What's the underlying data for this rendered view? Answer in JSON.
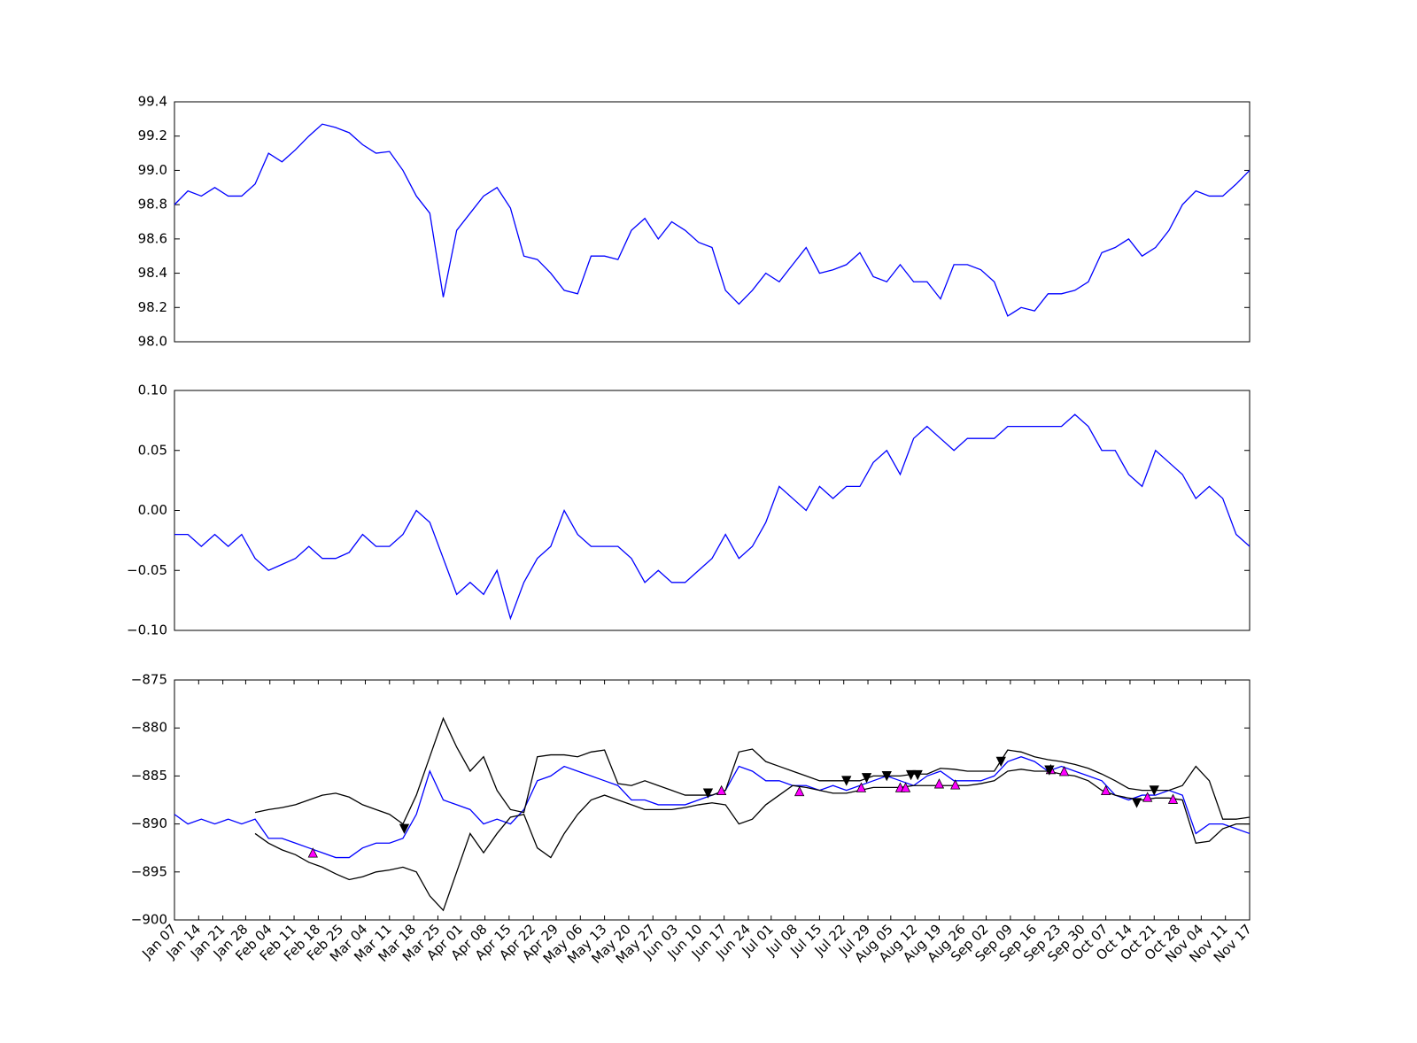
{
  "chart_data": [
    {
      "type": "line",
      "xlim": [
        0,
        80
      ],
      "ylim": [
        98.0,
        99.4
      ],
      "yticks": [
        {
          "value": 98,
          "label": "98.0"
        },
        98.2,
        98.4,
        98.6,
        98.8,
        {
          "value": 99,
          "label": "99.0"
        },
        99.2,
        99.4
      ],
      "series": [
        {
          "color": "#0000ff",
          "values": [
            98.8,
            98.88,
            98.85,
            98.9,
            98.85,
            98.85,
            98.92,
            99.1,
            99.05,
            99.12,
            99.2,
            99.27,
            99.25,
            99.22,
            99.15,
            99.1,
            99.11,
            99.0,
            98.85,
            98.75,
            98.26,
            98.65,
            98.75,
            98.85,
            98.9,
            98.78,
            98.5,
            98.48,
            98.4,
            98.3,
            98.28,
            98.5,
            98.5,
            98.48,
            98.65,
            98.72,
            98.6,
            98.7,
            98.65,
            98.58,
            98.55,
            98.3,
            98.22,
            98.3,
            98.4,
            98.35,
            98.45,
            98.55,
            98.4,
            98.42,
            98.45,
            98.52,
            98.38,
            98.35,
            98.45,
            98.35,
            98.35,
            98.25,
            98.45,
            98.45,
            98.42,
            98.35,
            98.15,
            98.2,
            98.18,
            98.28,
            98.28,
            98.3,
            98.35,
            98.52,
            98.55,
            98.6,
            98.5,
            98.55,
            98.65,
            98.8,
            98.88,
            98.85,
            98.85,
            98.92,
            99.0
          ]
        }
      ]
    },
    {
      "type": "line",
      "xlim": [
        0,
        80
      ],
      "ylim": [
        -0.1,
        0.1
      ],
      "yticks": [
        {
          "value": -0.1,
          "label": "−0.10"
        },
        {
          "value": -0.05,
          "label": "−0.05"
        },
        {
          "value": 0,
          "label": "0.00"
        },
        0.05,
        {
          "value": 0.1,
          "label": "0.10"
        }
      ],
      "series": [
        {
          "color": "#0000ff",
          "values": [
            -0.02,
            -0.02,
            -0.03,
            -0.02,
            -0.03,
            -0.02,
            -0.04,
            -0.05,
            -0.045,
            -0.04,
            -0.03,
            -0.04,
            -0.04,
            -0.035,
            -0.02,
            -0.03,
            -0.03,
            -0.02,
            0.0,
            -0.01,
            -0.04,
            -0.07,
            -0.06,
            -0.07,
            -0.05,
            -0.09,
            -0.06,
            -0.04,
            -0.03,
            0.0,
            -0.02,
            -0.03,
            -0.03,
            -0.03,
            -0.04,
            -0.06,
            -0.05,
            -0.06,
            -0.06,
            -0.05,
            -0.04,
            -0.02,
            -0.04,
            -0.03,
            -0.01,
            0.02,
            0.01,
            0.0,
            0.02,
            0.01,
            0.02,
            0.02,
            0.04,
            0.05,
            0.03,
            0.06,
            0.07,
            0.06,
            0.05,
            0.06,
            0.06,
            0.06,
            0.07,
            0.07,
            0.07,
            0.07,
            0.07,
            0.08,
            0.07,
            0.05,
            0.05,
            0.03,
            0.02,
            0.05,
            0.04,
            0.03,
            0.01,
            0.02,
            0.01,
            -0.02,
            -0.03
          ]
        }
      ]
    },
    {
      "type": "line",
      "xlim": [
        0,
        80
      ],
      "ylim": [
        -900,
        -875
      ],
      "yticks": [
        {
          "value": -900,
          "label": "−900"
        },
        {
          "value": -895,
          "label": "−895"
        },
        {
          "value": -890,
          "label": "−890"
        },
        {
          "value": -885,
          "label": "−885"
        },
        {
          "value": -880,
          "label": "−880"
        },
        {
          "value": -875,
          "label": "−875"
        }
      ],
      "xticks": [
        {
          "value": 0,
          "label": "Jan 07"
        },
        {
          "value": 1.8,
          "label": "Jan 14"
        },
        {
          "value": 3.6,
          "label": "Jan 21"
        },
        {
          "value": 5.3,
          "label": "Jan 28"
        },
        {
          "value": 7.1,
          "label": "Feb 04"
        },
        {
          "value": 8.9,
          "label": "Feb 11"
        },
        {
          "value": 10.7,
          "label": "Feb 18"
        },
        {
          "value": 12.4,
          "label": "Feb 25"
        },
        {
          "value": 14.2,
          "label": "Mar 04"
        },
        {
          "value": 16,
          "label": "Mar 11"
        },
        {
          "value": 17.8,
          "label": "Mar 18"
        },
        {
          "value": 19.6,
          "label": "Mar 25"
        },
        {
          "value": 21.3,
          "label": "Apr 01"
        },
        {
          "value": 23.1,
          "label": "Apr 08"
        },
        {
          "value": 24.9,
          "label": "Apr 15"
        },
        {
          "value": 26.7,
          "label": "Apr 22"
        },
        {
          "value": 28.4,
          "label": "Apr 29"
        },
        {
          "value": 30.2,
          "label": "May 06"
        },
        {
          "value": 32,
          "label": "May 13"
        },
        {
          "value": 33.8,
          "label": "May 20"
        },
        {
          "value": 35.6,
          "label": "May 27"
        },
        {
          "value": 37.3,
          "label": "Jun 03"
        },
        {
          "value": 39.1,
          "label": "Jun 10"
        },
        {
          "value": 40.9,
          "label": "Jun 17"
        },
        {
          "value": 42.7,
          "label": "Jun 24"
        },
        {
          "value": 44.4,
          "label": "Jul 01"
        },
        {
          "value": 46.2,
          "label": "Jul 08"
        },
        {
          "value": 48,
          "label": "Jul 15"
        },
        {
          "value": 49.8,
          "label": "Jul 22"
        },
        {
          "value": 51.6,
          "label": "Jul 29"
        },
        {
          "value": 53.3,
          "label": "Aug 05"
        },
        {
          "value": 55.1,
          "label": "Aug 12"
        },
        {
          "value": 56.9,
          "label": "Aug 19"
        },
        {
          "value": 58.7,
          "label": "Aug 26"
        },
        {
          "value": 60.4,
          "label": "Sep 02"
        },
        {
          "value": 62.2,
          "label": "Sep 09"
        },
        {
          "value": 64,
          "label": "Sep 16"
        },
        {
          "value": 65.8,
          "label": "Sep 23"
        },
        {
          "value": 67.6,
          "label": "Sep 30"
        },
        {
          "value": 69.3,
          "label": "Oct 07"
        },
        {
          "value": 71.1,
          "label": "Oct 14"
        },
        {
          "value": 72.9,
          "label": "Oct 21"
        },
        {
          "value": 74.7,
          "label": "Oct 28"
        },
        {
          "value": 76.4,
          "label": "Nov 04"
        },
        {
          "value": 78.2,
          "label": "Nov 11"
        },
        {
          "value": 80,
          "label": "Nov 17"
        }
      ],
      "series": [
        {
          "color": "#0000ff",
          "values": [
            -889,
            -890,
            -889.5,
            -890,
            -889.5,
            -890,
            -889.5,
            -891.5,
            -891.5,
            -892,
            -892.5,
            -893,
            -893.5,
            -893.5,
            -892.5,
            -892,
            -892,
            -891.5,
            -889,
            -884.5,
            -887.5,
            -888,
            -888.5,
            -890,
            -889.5,
            -890,
            -888.5,
            -885.5,
            -885,
            -884,
            -884.5,
            -885,
            -885.5,
            -886,
            -887.5,
            -887.5,
            -888,
            -888,
            -888,
            -887.5,
            -887,
            -886.5,
            -884,
            -884.5,
            -885.5,
            -885.5,
            -886,
            -886,
            -886.5,
            -886,
            -886.5,
            -886,
            -885.5,
            -885,
            -885.5,
            -886,
            -885,
            -884.5,
            -885.5,
            -885.5,
            -885.5,
            -885,
            -883.5,
            -883,
            -883.5,
            -884.5,
            -884,
            -884.5,
            -885,
            -885.5,
            -887,
            -887.5,
            -887,
            -887,
            -886.5,
            -887,
            -891,
            -890,
            -890,
            -890.5,
            -891
          ]
        },
        {
          "color": "#000000",
          "values": [
            null,
            null,
            null,
            null,
            null,
            null,
            -888.8,
            -888.5,
            -888.3,
            -888,
            -887.5,
            -887,
            -886.8,
            -887.2,
            -888,
            -888.5,
            -889,
            -890,
            -887,
            -883,
            -879,
            -882,
            -884.5,
            -883,
            -886.5,
            -888.5,
            -888.8,
            -883,
            -882.8,
            -882.8,
            -883,
            -882.5,
            -882.3,
            -885.8,
            -886,
            -885.5,
            -886,
            -886.5,
            -887,
            -887,
            -887,
            -886.5,
            -882.5,
            -882.2,
            -883.5,
            -884,
            -884.5,
            -885,
            -885.5,
            -885.5,
            -885.5,
            -885.5,
            -885,
            -885,
            -885,
            -884.8,
            -884.8,
            -884.2,
            -884.3,
            -884.5,
            -884.5,
            -884.5,
            -882.3,
            -882.5,
            -883,
            -883.3,
            -883.5,
            -883.8,
            -884.2,
            -884.8,
            -885.5,
            -886.3,
            -886.5,
            -886.5,
            -886.5,
            -886,
            -884,
            -885.5,
            -889.5,
            -889.5,
            -889.3
          ]
        },
        {
          "color": "#000000",
          "values": [
            null,
            null,
            null,
            null,
            null,
            null,
            -891,
            -892,
            -892.7,
            -893.2,
            -894,
            -894.5,
            -895.2,
            -895.8,
            -895.5,
            -895,
            -894.8,
            -894.5,
            -895,
            -897.5,
            -899,
            -895,
            -891,
            -893,
            -891,
            -889.3,
            -889,
            -892.5,
            -893.5,
            -891,
            -889,
            -887.5,
            -887,
            -887.5,
            -888,
            -888.5,
            -888.5,
            -888.5,
            -888.3,
            -888,
            -887.8,
            -888,
            -890,
            -889.5,
            -888,
            -887,
            -886,
            -886.2,
            -886.5,
            -886.8,
            -886.8,
            -886.5,
            -886.2,
            -886.2,
            -886.2,
            -886,
            -886,
            -886,
            -886,
            -886,
            -885.8,
            -885.5,
            -884.5,
            -884.3,
            -884.5,
            -884.5,
            -884.8,
            -885,
            -885.5,
            -886.5,
            -887,
            -887.3,
            -887.5,
            -887.3,
            -887.3,
            -887.5,
            -892,
            -891.8,
            -890.5,
            -890,
            -890
          ]
        },
        {
          "type": "scatter",
          "marker": "up",
          "color": "#ff00ff",
          "x": [
            10.3,
            40.7,
            46.5,
            51.1,
            54,
            54.4,
            56.9,
            58.1,
            65.2,
            66.2,
            69.3,
            72.4,
            74.3
          ],
          "values": [
            -893,
            -886.5,
            -886.6,
            -886.2,
            -886.2,
            -886.2,
            -885.8,
            -885.9,
            -884.3,
            -884.5,
            -886.5,
            -887.2,
            -887.4
          ]
        },
        {
          "type": "scatter",
          "marker": "down",
          "color": "#000000",
          "x": [
            17.1,
            39.7,
            50,
            51.5,
            53,
            54.8,
            55.3,
            61.5,
            65.1,
            71.6,
            72.9
          ],
          "values": [
            -890.5,
            -886.8,
            -885.5,
            -885.2,
            -885,
            -884.9,
            -884.9,
            -883.5,
            -884.4,
            -887.8,
            -886.5
          ]
        }
      ]
    }
  ]
}
